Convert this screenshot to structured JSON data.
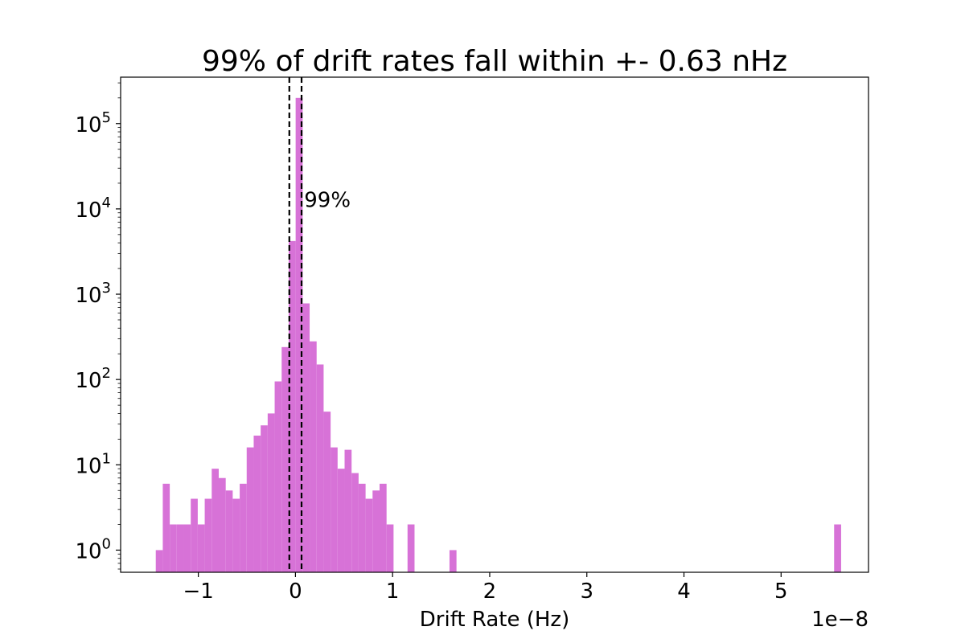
{
  "chart_data": {
    "type": "bar",
    "title": "99% of drift rates fall within +- 0.63 nHz",
    "xlabel": "Drift Rate (Hz)",
    "ylabel": "",
    "x_offset_label": "1e−8",
    "x_scale_factor": 1e-08,
    "yscale": "log",
    "xlim": [
      -1.8e-08,
      5.9e-08
    ],
    "ylim": [
      0.55,
      350000
    ],
    "grid": false,
    "color": "#d772d7",
    "x_ticks": [
      {
        "value": -1e-08,
        "label": "−1"
      },
      {
        "value": 0,
        "label": "0"
      },
      {
        "value": 1e-08,
        "label": "1"
      },
      {
        "value": 2e-08,
        "label": "2"
      },
      {
        "value": 3e-08,
        "label": "3"
      },
      {
        "value": 4e-08,
        "label": "4"
      },
      {
        "value": 5e-08,
        "label": "5"
      }
    ],
    "y_ticks": [
      {
        "value": 1,
        "base": "10",
        "exp": "0"
      },
      {
        "value": 10,
        "base": "10",
        "exp": "1"
      },
      {
        "value": 100,
        "base": "10",
        "exp": "2"
      },
      {
        "value": 1000,
        "base": "10",
        "exp": "3"
      },
      {
        "value": 10000,
        "base": "10",
        "exp": "4"
      },
      {
        "value": 100000,
        "base": "10",
        "exp": "5"
      }
    ],
    "bin_width": 7.2e-10,
    "bins": [
      {
        "x": -1.438e-08,
        "count": 1
      },
      {
        "x": -1.366e-08,
        "count": 6
      },
      {
        "x": -1.294e-08,
        "count": 2
      },
      {
        "x": -1.222e-08,
        "count": 2
      },
      {
        "x": -1.15e-08,
        "count": 2
      },
      {
        "x": -1.078e-08,
        "count": 4
      },
      {
        "x": -1.006e-08,
        "count": 2
      },
      {
        "x": -9.34e-09,
        "count": 4
      },
      {
        "x": -8.62e-09,
        "count": 9
      },
      {
        "x": -7.9e-09,
        "count": 7
      },
      {
        "x": -7.18e-09,
        "count": 5
      },
      {
        "x": -6.46e-09,
        "count": 4
      },
      {
        "x": -5.74e-09,
        "count": 6
      },
      {
        "x": -5.02e-09,
        "count": 16
      },
      {
        "x": -4.3e-09,
        "count": 22
      },
      {
        "x": -3.58e-09,
        "count": 29
      },
      {
        "x": -2.86e-09,
        "count": 40
      },
      {
        "x": -2.14e-09,
        "count": 95
      },
      {
        "x": -1.42e-09,
        "count": 240
      },
      {
        "x": -7e-10,
        "count": 4200
      },
      {
        "x": 2e-11,
        "count": 200000
      },
      {
        "x": 7.4e-10,
        "count": 780
      },
      {
        "x": 1.46e-09,
        "count": 280
      },
      {
        "x": 2.18e-09,
        "count": 150
      },
      {
        "x": 2.9e-09,
        "count": 42
      },
      {
        "x": 3.62e-09,
        "count": 16
      },
      {
        "x": 4.34e-09,
        "count": 9
      },
      {
        "x": 5.06e-09,
        "count": 15
      },
      {
        "x": 5.78e-09,
        "count": 8
      },
      {
        "x": 6.5e-09,
        "count": 6
      },
      {
        "x": 7.22e-09,
        "count": 4
      },
      {
        "x": 7.94e-09,
        "count": 5
      },
      {
        "x": 8.66e-09,
        "count": 6
      },
      {
        "x": 9.38e-09,
        "count": 2
      },
      {
        "x": 1.154e-08,
        "count": 2
      },
      {
        "x": 1.586e-08,
        "count": 1
      },
      {
        "x": 5.546e-08,
        "count": 2
      }
    ],
    "vlines": [
      {
        "x": -6.3e-10,
        "style": "dashed",
        "color": "#000000"
      },
      {
        "x": 6.3e-10,
        "style": "dashed",
        "color": "#000000"
      }
    ],
    "annotation": {
      "text": "99%",
      "x": 9e-10,
      "y": 10500
    }
  }
}
